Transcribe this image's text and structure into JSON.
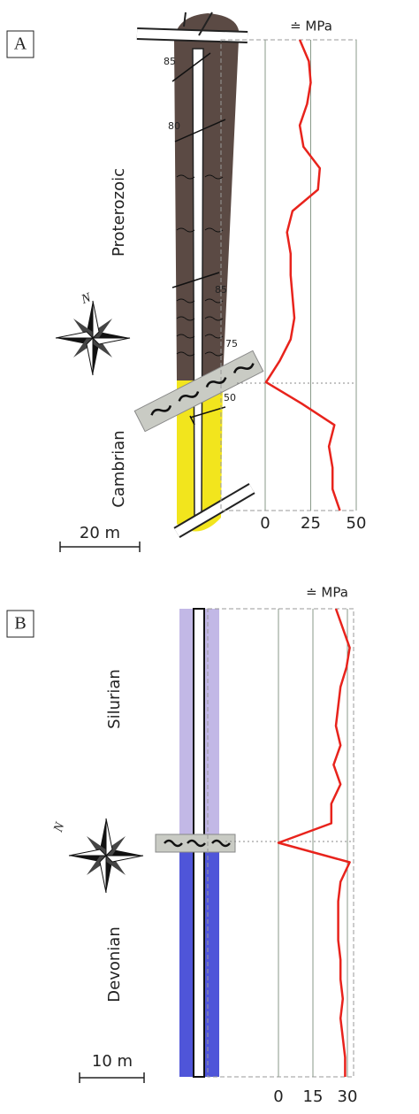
{
  "figure": {
    "panels": [
      {
        "label": "A",
        "periods": [
          "Proterozoic",
          "Cambrian"
        ],
        "scale_bar": "20 m",
        "north": "N",
        "dips": [
          "85",
          "80",
          "85",
          "75",
          "50"
        ]
      },
      {
        "label": "B",
        "periods": [
          "Silurian",
          "Devonian"
        ],
        "scale_bar": "10 m",
        "north": "N"
      }
    ]
  },
  "chart_data": [
    {
      "type": "line",
      "orientation": "vertical",
      "x_label": "≐ MPa",
      "color": "#e8231c",
      "xlim": [
        0,
        50
      ],
      "xticks": [
        0,
        25,
        50
      ],
      "grid": true,
      "categories": [
        null,
        null,
        null,
        null,
        null,
        null,
        null,
        null,
        null,
        null,
        null,
        null,
        null,
        null,
        null,
        null,
        null,
        null,
        null,
        null,
        null,
        null,
        null
      ],
      "values": [
        19,
        24,
        25,
        23,
        19,
        21,
        30,
        29,
        15,
        12,
        14,
        14,
        15,
        16,
        14,
        8,
        0.5,
        20,
        38,
        35,
        37,
        37,
        41
      ]
    },
    {
      "type": "line",
      "orientation": "vertical",
      "x_label": "≐ MPa",
      "color": "#e8231c",
      "xlim": [
        0,
        30
      ],
      "xticks": [
        0,
        15,
        30
      ],
      "grid": true,
      "categories": [
        null,
        null,
        null,
        null,
        null,
        null,
        null,
        null,
        null,
        null,
        null,
        null,
        null,
        null,
        null,
        null,
        null,
        null,
        null,
        null,
        null,
        null,
        null,
        null,
        null
      ],
      "values": [
        25,
        28,
        31,
        29.6,
        27,
        26,
        25,
        27,
        24,
        27,
        23,
        23,
        0,
        31,
        27,
        26,
        26,
        26,
        27,
        27,
        28,
        27,
        28,
        29,
        29
      ]
    }
  ]
}
